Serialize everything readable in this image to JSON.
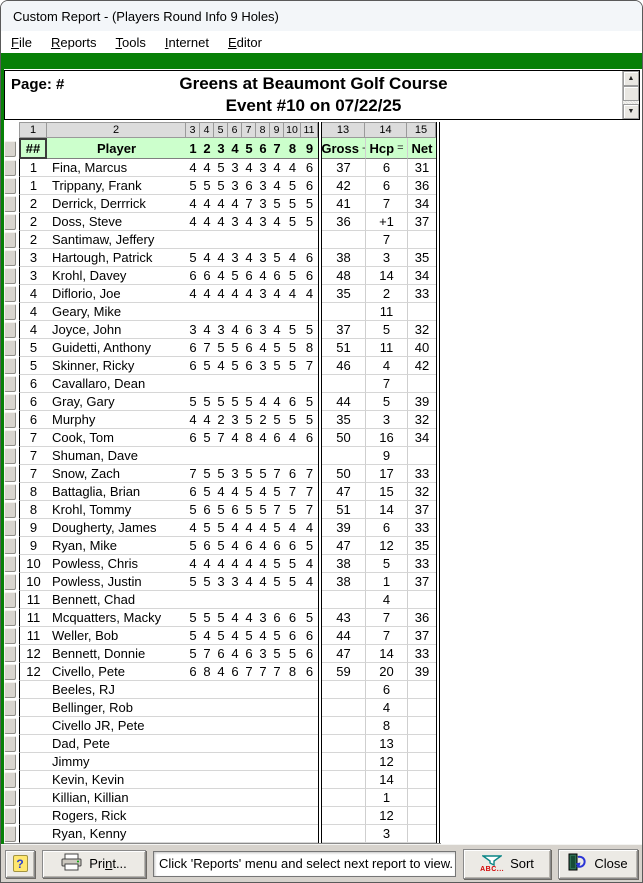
{
  "window_title": "Custom Report - (Players Round Info 9 Holes)",
  "menu": {
    "items": [
      "File",
      "Reports",
      "Tools",
      "Internet",
      "Editor"
    ]
  },
  "page_header": {
    "page_label": "Page: #",
    "title": "Greens at Beaumont Golf Course",
    "subtitle": "Event #10 on 07/22/25"
  },
  "grid": {
    "column_numbers": {
      "num": "1",
      "player": "2",
      "holes": [
        "3",
        "4",
        "5",
        "6",
        "7",
        "8",
        "9",
        "10",
        "11"
      ],
      "gross": "13",
      "hcp": "14",
      "net": "15"
    },
    "header": {
      "num": "##",
      "player": "Player",
      "holes": [
        "1",
        "2",
        "3",
        "4",
        "5",
        "6",
        "7",
        "8",
        "9"
      ],
      "gross": "Gross",
      "gross_op": "-",
      "hcp": "Hcp",
      "hcp_op": "=",
      "net": "Net"
    },
    "rows": [
      {
        "flight": "1",
        "player": "Fina, Marcus",
        "holes": [
          4,
          4,
          5,
          3,
          4,
          3,
          4,
          4,
          6
        ],
        "gross": "37",
        "hcp": "6",
        "net": "31"
      },
      {
        "flight": "1",
        "player": "Trippany, Frank",
        "holes": [
          5,
          5,
          5,
          3,
          6,
          3,
          4,
          5,
          6
        ],
        "gross": "42",
        "hcp": "6",
        "net": "36"
      },
      {
        "flight": "2",
        "player": "Derrick, Derrrick",
        "holes": [
          4,
          4,
          4,
          4,
          7,
          3,
          5,
          5,
          5
        ],
        "gross": "41",
        "hcp": "7",
        "net": "34"
      },
      {
        "flight": "2",
        "player": "Doss, Steve",
        "holes": [
          4,
          4,
          4,
          3,
          4,
          3,
          4,
          5,
          5
        ],
        "gross": "36",
        "hcp": "+1",
        "net": "37"
      },
      {
        "flight": "2",
        "player": "Santimaw, Jeffery",
        "holes": [],
        "gross": "",
        "hcp": "7",
        "net": ""
      },
      {
        "flight": "3",
        "player": "Hartough, Patrick",
        "holes": [
          5,
          4,
          4,
          3,
          4,
          3,
          5,
          4,
          6
        ],
        "gross": "38",
        "hcp": "3",
        "net": "35"
      },
      {
        "flight": "3",
        "player": "Krohl, Davey",
        "holes": [
          6,
          6,
          4,
          5,
          6,
          4,
          6,
          5,
          6
        ],
        "gross": "48",
        "hcp": "14",
        "net": "34"
      },
      {
        "flight": "4",
        "player": "Diflorio, Joe",
        "holes": [
          4,
          4,
          4,
          4,
          4,
          3,
          4,
          4,
          4
        ],
        "gross": "35",
        "hcp": "2",
        "net": "33"
      },
      {
        "flight": "4",
        "player": "Geary, Mike",
        "holes": [],
        "gross": "",
        "hcp": "11",
        "net": ""
      },
      {
        "flight": "4",
        "player": "Joyce, John",
        "holes": [
          3,
          4,
          3,
          4,
          6,
          3,
          4,
          5,
          5
        ],
        "gross": "37",
        "hcp": "5",
        "net": "32"
      },
      {
        "flight": "5",
        "player": "Guidetti, Anthony",
        "holes": [
          6,
          7,
          5,
          5,
          6,
          4,
          5,
          5,
          8
        ],
        "gross": "51",
        "hcp": "11",
        "net": "40"
      },
      {
        "flight": "5",
        "player": "Skinner, Ricky",
        "holes": [
          6,
          5,
          4,
          5,
          6,
          3,
          5,
          5,
          7
        ],
        "gross": "46",
        "hcp": "4",
        "net": "42"
      },
      {
        "flight": "6",
        "player": "Cavallaro, Dean",
        "holes": [],
        "gross": "",
        "hcp": "7",
        "net": ""
      },
      {
        "flight": "6",
        "player": "Gray, Gary",
        "holes": [
          5,
          5,
          5,
          5,
          5,
          4,
          4,
          6,
          5
        ],
        "gross": "44",
        "hcp": "5",
        "net": "39"
      },
      {
        "flight": "6",
        "player": "Murphy",
        "holes": [
          4,
          4,
          2,
          3,
          5,
          2,
          5,
          5,
          5
        ],
        "gross": "35",
        "hcp": "3",
        "net": "32"
      },
      {
        "flight": "7",
        "player": "Cook, Tom",
        "holes": [
          6,
          5,
          7,
          4,
          8,
          4,
          6,
          4,
          6
        ],
        "gross": "50",
        "hcp": "16",
        "net": "34"
      },
      {
        "flight": "7",
        "player": "Shuman, Dave",
        "holes": [],
        "gross": "",
        "hcp": "9",
        "net": ""
      },
      {
        "flight": "7",
        "player": "Snow, Zach",
        "holes": [
          7,
          5,
          5,
          3,
          5,
          5,
          7,
          6,
          7
        ],
        "gross": "50",
        "hcp": "17",
        "net": "33"
      },
      {
        "flight": "8",
        "player": "Battaglia, Brian",
        "holes": [
          6,
          5,
          4,
          4,
          5,
          4,
          5,
          7,
          7
        ],
        "gross": "47",
        "hcp": "15",
        "net": "32"
      },
      {
        "flight": "8",
        "player": "Krohl, Tommy",
        "holes": [
          5,
          6,
          5,
          6,
          5,
          5,
          7,
          5,
          7
        ],
        "gross": "51",
        "hcp": "14",
        "net": "37"
      },
      {
        "flight": "9",
        "player": "Dougherty, James",
        "holes": [
          4,
          5,
          5,
          4,
          4,
          4,
          5,
          4,
          4
        ],
        "gross": "39",
        "hcp": "6",
        "net": "33"
      },
      {
        "flight": "9",
        "player": "Ryan, Mike",
        "holes": [
          5,
          6,
          5,
          4,
          6,
          4,
          6,
          6,
          5
        ],
        "gross": "47",
        "hcp": "12",
        "net": "35"
      },
      {
        "flight": "10",
        "player": "Powless, Chris",
        "holes": [
          4,
          4,
          4,
          4,
          4,
          4,
          5,
          5,
          4
        ],
        "gross": "38",
        "hcp": "5",
        "net": "33"
      },
      {
        "flight": "10",
        "player": "Powless, Justin",
        "holes": [
          5,
          5,
          3,
          3,
          4,
          4,
          5,
          5,
          4
        ],
        "gross": "38",
        "hcp": "1",
        "net": "37"
      },
      {
        "flight": "11",
        "player": "Bennett, Chad",
        "holes": [],
        "gross": "",
        "hcp": "4",
        "net": ""
      },
      {
        "flight": "11",
        "player": "Mcquatters, Macky",
        "holes": [
          5,
          5,
          5,
          4,
          4,
          3,
          6,
          6,
          5
        ],
        "gross": "43",
        "hcp": "7",
        "net": "36"
      },
      {
        "flight": "11",
        "player": "Weller, Bob",
        "holes": [
          5,
          4,
          5,
          4,
          5,
          4,
          5,
          6,
          6
        ],
        "gross": "44",
        "hcp": "7",
        "net": "37"
      },
      {
        "flight": "12",
        "player": "Bennett, Donnie",
        "holes": [
          5,
          7,
          6,
          4,
          6,
          3,
          5,
          5,
          6
        ],
        "gross": "47",
        "hcp": "14",
        "net": "33"
      },
      {
        "flight": "12",
        "player": "Civello, Pete",
        "holes": [
          6,
          8,
          4,
          6,
          7,
          7,
          7,
          8,
          6
        ],
        "gross": "59",
        "hcp": "20",
        "net": "39"
      },
      {
        "flight": "",
        "player": "Beeles, RJ",
        "holes": [],
        "gross": "",
        "hcp": "6",
        "net": ""
      },
      {
        "flight": "",
        "player": "Bellinger, Rob",
        "holes": [],
        "gross": "",
        "hcp": "4",
        "net": ""
      },
      {
        "flight": "",
        "player": "Civello JR, Pete",
        "holes": [],
        "gross": "",
        "hcp": "8",
        "net": ""
      },
      {
        "flight": "",
        "player": "Dad, Pete",
        "holes": [],
        "gross": "",
        "hcp": "13",
        "net": ""
      },
      {
        "flight": "",
        "player": "Jimmy",
        "holes": [],
        "gross": "",
        "hcp": "12",
        "net": ""
      },
      {
        "flight": "",
        "player": "Kevin, Kevin",
        "holes": [],
        "gross": "",
        "hcp": "14",
        "net": ""
      },
      {
        "flight": "",
        "player": "Killian, Killian",
        "holes": [],
        "gross": "",
        "hcp": "1",
        "net": ""
      },
      {
        "flight": "",
        "player": "Rogers, Rick",
        "holes": [],
        "gross": "",
        "hcp": "12",
        "net": ""
      },
      {
        "flight": "",
        "player": "Ryan, Kenny",
        "holes": [],
        "gross": "",
        "hcp": "3",
        "net": ""
      }
    ]
  },
  "status_bar": {
    "help_icon": "?",
    "print": {
      "pre": "Pri",
      "accel": "n",
      "post": "t..."
    },
    "message": "Click 'Reports' menu and select next report to view.",
    "sort_label": "Sort",
    "sort_abc": "ABC...",
    "close_label": "Close"
  },
  "colors": {
    "accent_green": "#078007",
    "header_green": "#ccffcc"
  }
}
